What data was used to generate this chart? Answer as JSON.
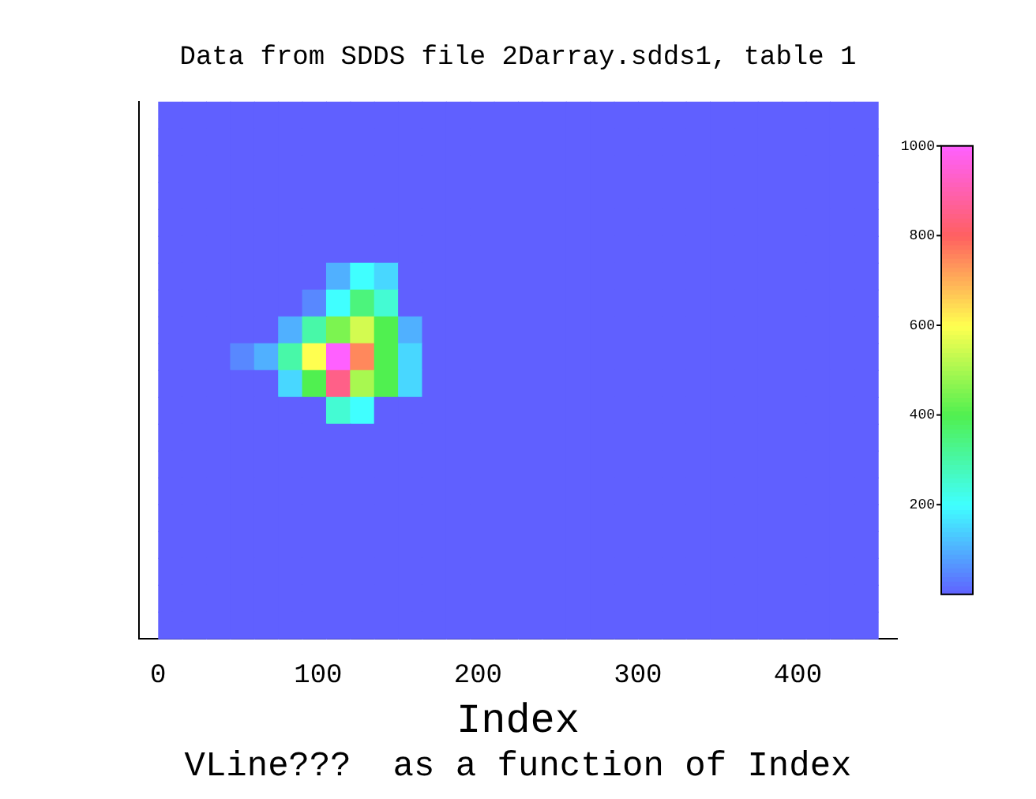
{
  "chart_data": {
    "type": "heatmap",
    "title": "Data from SDDS file 2Darray.sdds1, table 1",
    "xlabel": "Index",
    "annotations": [
      "VLine???  as a function of Index"
    ],
    "x": [
      7.5,
      22.5,
      37.5,
      52.5,
      67.5,
      82.5,
      97.5,
      112.5,
      127.5,
      142.5,
      157.5,
      172.5,
      187.5,
      202.5,
      217.5,
      232.5,
      247.5,
      262.5,
      277.5,
      292.5,
      307.5,
      322.5,
      337.5,
      352.5,
      367.5,
      382.5,
      397.5,
      412.5,
      427.5,
      442.5
    ],
    "y_categories": [
      null,
      null,
      null,
      null,
      null,
      null,
      null,
      null,
      null,
      null,
      null,
      null,
      null,
      null,
      null,
      null,
      null,
      null,
      null,
      null
    ],
    "xlim": [
      -12,
      462
    ],
    "xticks": [
      0,
      100,
      200,
      300,
      400
    ],
    "clim": [
      0,
      1000
    ],
    "cticks": [
      200,
      400,
      600,
      800,
      1000
    ],
    "cells": [
      [
        0,
        0,
        0,
        0,
        0,
        0,
        0,
        0,
        0,
        0,
        0,
        0,
        0,
        0,
        0,
        0,
        0,
        0,
        0,
        0,
        0,
        0,
        0,
        0,
        0,
        0,
        0,
        0,
        0,
        0
      ],
      [
        0,
        0,
        0,
        0,
        0,
        0,
        0,
        0,
        0,
        0,
        0,
        0,
        0,
        0,
        0,
        0,
        0,
        0,
        0,
        0,
        0,
        0,
        0,
        0,
        0,
        0,
        0,
        0,
        0,
        0
      ],
      [
        0,
        0,
        0,
        0,
        0,
        0,
        0,
        0,
        0,
        0,
        0,
        0,
        0,
        0,
        0,
        0,
        0,
        0,
        0,
        0,
        0,
        0,
        0,
        0,
        0,
        0,
        0,
        0,
        0,
        0
      ],
      [
        0,
        0,
        0,
        0,
        0,
        0,
        0,
        0,
        0,
        0,
        0,
        0,
        0,
        0,
        0,
        0,
        0,
        0,
        0,
        0,
        0,
        0,
        0,
        0,
        0,
        0,
        0,
        0,
        0,
        0
      ],
      [
        0,
        0,
        0,
        0,
        0,
        0,
        0,
        0,
        0,
        0,
        0,
        0,
        0,
        0,
        0,
        0,
        0,
        0,
        0,
        0,
        0,
        0,
        0,
        0,
        0,
        0,
        0,
        0,
        0,
        0
      ],
      [
        0,
        0,
        0,
        0,
        0,
        0,
        0,
        0,
        0,
        0,
        0,
        0,
        0,
        0,
        0,
        0,
        0,
        0,
        0,
        0,
        0,
        0,
        0,
        0,
        0,
        0,
        0,
        0,
        0,
        0
      ],
      [
        0,
        0,
        0,
        0,
        0,
        0,
        0,
        100,
        200,
        150,
        0,
        0,
        0,
        0,
        0,
        0,
        0,
        0,
        0,
        0,
        0,
        0,
        0,
        0,
        0,
        0,
        0,
        0,
        0,
        0
      ],
      [
        0,
        0,
        0,
        0,
        0,
        0,
        50,
        200,
        350,
        250,
        0,
        0,
        0,
        0,
        0,
        0,
        0,
        0,
        0,
        0,
        0,
        0,
        0,
        0,
        0,
        0,
        0,
        0,
        0,
        0
      ],
      [
        0,
        0,
        0,
        0,
        0,
        100,
        300,
        450,
        550,
        400,
        100,
        0,
        0,
        0,
        0,
        0,
        0,
        0,
        0,
        0,
        0,
        0,
        0,
        0,
        0,
        0,
        0,
        0,
        0,
        0
      ],
      [
        0,
        0,
        0,
        50,
        100,
        300,
        600,
        1000,
        750,
        400,
        150,
        0,
        0,
        0,
        0,
        0,
        0,
        0,
        0,
        0,
        0,
        0,
        0,
        0,
        0,
        0,
        0,
        0,
        0,
        0
      ],
      [
        0,
        0,
        0,
        0,
        0,
        150,
        400,
        850,
        500,
        400,
        150,
        0,
        0,
        0,
        0,
        0,
        0,
        0,
        0,
        0,
        0,
        0,
        0,
        0,
        0,
        0,
        0,
        0,
        0,
        0
      ],
      [
        0,
        0,
        0,
        0,
        0,
        0,
        0,
        250,
        200,
        0,
        0,
        0,
        0,
        0,
        0,
        0,
        0,
        0,
        0,
        0,
        0,
        0,
        0,
        0,
        0,
        0,
        0,
        0,
        0,
        0
      ],
      [
        0,
        0,
        0,
        0,
        0,
        0,
        0,
        0,
        0,
        0,
        0,
        0,
        0,
        0,
        0,
        0,
        0,
        0,
        0,
        0,
        0,
        0,
        0,
        0,
        0,
        0,
        0,
        0,
        0,
        0
      ],
      [
        0,
        0,
        0,
        0,
        0,
        0,
        0,
        0,
        0,
        0,
        0,
        0,
        0,
        0,
        0,
        0,
        0,
        0,
        0,
        0,
        0,
        0,
        0,
        0,
        0,
        0,
        0,
        0,
        0,
        0
      ],
      [
        0,
        0,
        0,
        0,
        0,
        0,
        0,
        0,
        0,
        0,
        0,
        0,
        0,
        0,
        0,
        0,
        0,
        0,
        0,
        0,
        0,
        0,
        0,
        0,
        0,
        0,
        0,
        0,
        0,
        0
      ],
      [
        0,
        0,
        0,
        0,
        0,
        0,
        0,
        0,
        0,
        0,
        0,
        0,
        0,
        0,
        0,
        0,
        0,
        0,
        0,
        0,
        0,
        0,
        0,
        0,
        0,
        0,
        0,
        0,
        0,
        0
      ],
      [
        0,
        0,
        0,
        0,
        0,
        0,
        0,
        0,
        0,
        0,
        0,
        0,
        0,
        0,
        0,
        0,
        0,
        0,
        0,
        0,
        0,
        0,
        0,
        0,
        0,
        0,
        0,
        0,
        0,
        0
      ],
      [
        0,
        0,
        0,
        0,
        0,
        0,
        0,
        0,
        0,
        0,
        0,
        0,
        0,
        0,
        0,
        0,
        0,
        0,
        0,
        0,
        0,
        0,
        0,
        0,
        0,
        0,
        0,
        0,
        0,
        0
      ],
      [
        0,
        0,
        0,
        0,
        0,
        0,
        0,
        0,
        0,
        0,
        0,
        0,
        0,
        0,
        0,
        0,
        0,
        0,
        0,
        0,
        0,
        0,
        0,
        0,
        0,
        0,
        0,
        0,
        0,
        0
      ],
      [
        0,
        0,
        0,
        0,
        0,
        0,
        0,
        0,
        0,
        0,
        0,
        0,
        0,
        0,
        0,
        0,
        0,
        0,
        0,
        0,
        0,
        0,
        0,
        0,
        0,
        0,
        0,
        0,
        0,
        0
      ]
    ]
  }
}
